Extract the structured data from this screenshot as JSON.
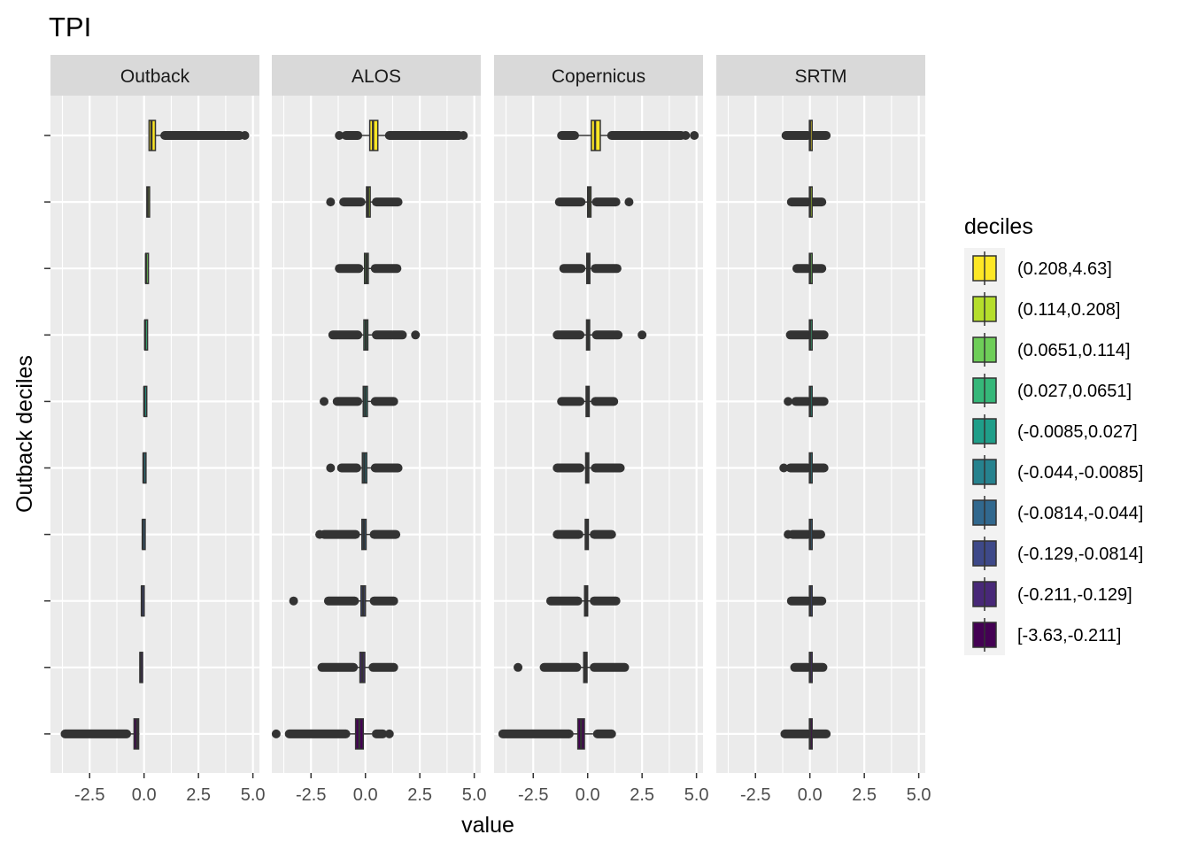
{
  "chart_data": {
    "type": "boxplot",
    "title": "TPI",
    "xlabel": "value",
    "ylabel": "Outback deciles",
    "xlim": [
      -4.3,
      5.3
    ],
    "x_ticks": [
      -2.5,
      0.0,
      2.5,
      5.0
    ],
    "x_tick_labels": [
      "-2.5",
      "0.0",
      "2.5",
      "5.0"
    ],
    "orientation": "horizontal",
    "grid": true,
    "legend_title": "deciles",
    "legend_position": "right",
    "colors": {
      "panel_bg": "#ebebeb",
      "grid": "#ffffff",
      "strip_bg": "#d9d9d9",
      "outlier": "#333333",
      "box_line": "#333333"
    },
    "deciles": [
      {
        "label": "(0.208,4.63]",
        "color": "#fde725"
      },
      {
        "label": "(0.114,0.208]",
        "color": "#b5de2b"
      },
      {
        "label": "(0.0651,0.114]",
        "color": "#6ece58"
      },
      {
        "label": "(0.027,0.0651]",
        "color": "#35b779"
      },
      {
        "label": "(-0.0085,0.027]",
        "color": "#1f9e89"
      },
      {
        "label": "(-0.044,-0.0085]",
        "color": "#26828e"
      },
      {
        "label": "(-0.0814,-0.044]",
        "color": "#31688e"
      },
      {
        "label": "(-0.129,-0.0814]",
        "color": "#3e4989"
      },
      {
        "label": "(-0.211,-0.129]",
        "color": "#482878"
      },
      {
        "label": "[-3.63,-0.211]",
        "color": "#440154"
      }
    ],
    "panels": [
      {
        "name": "Outback",
        "boxes": [
          {
            "q1": 0.23,
            "median": 0.34,
            "q3": 0.52,
            "wlo": 0.208,
            "whi": 0.95,
            "outliers": [
              [
                0.95,
                4.4
              ],
              [
                4.63,
                4.63
              ]
            ]
          },
          {
            "q1": 0.13,
            "median": 0.16,
            "q3": 0.19,
            "wlo": 0.114,
            "whi": 0.208,
            "outliers": []
          },
          {
            "q1": 0.077,
            "median": 0.088,
            "q3": 0.1,
            "wlo": 0.065,
            "whi": 0.114,
            "outliers": []
          },
          {
            "q1": 0.036,
            "median": 0.045,
            "q3": 0.055,
            "wlo": 0.027,
            "whi": 0.065,
            "outliers": []
          },
          {
            "q1": 0.0,
            "median": 0.009,
            "q3": 0.018,
            "wlo": -0.0085,
            "whi": 0.027,
            "outliers": []
          },
          {
            "q1": -0.035,
            "median": -0.026,
            "q3": -0.017,
            "wlo": -0.044,
            "whi": -0.0085,
            "outliers": []
          },
          {
            "q1": -0.072,
            "median": -0.062,
            "q3": -0.053,
            "wlo": -0.081,
            "whi": -0.044,
            "outliers": []
          },
          {
            "q1": -0.117,
            "median": -0.104,
            "q3": -0.092,
            "wlo": -0.129,
            "whi": -0.081,
            "outliers": []
          },
          {
            "q1": -0.19,
            "median": -0.168,
            "q3": -0.148,
            "wlo": -0.211,
            "whi": -0.129,
            "outliers": []
          },
          {
            "q1": -0.46,
            "median": -0.33,
            "q3": -0.25,
            "wlo": -0.8,
            "whi": -0.211,
            "outliers": [
              [
                -3.63,
                -0.8
              ]
            ]
          }
        ]
      },
      {
        "name": "ALOS",
        "boxes": [
          {
            "q1": 0.2,
            "median": 0.35,
            "q3": 0.57,
            "wlo": -0.35,
            "whi": 1.1,
            "outliers": [
              [
                -0.9,
                -0.35
              ],
              [
                -1.2,
                -1.2
              ],
              [
                1.1,
                4.3
              ],
              [
                4.5,
                4.5
              ]
            ]
          },
          {
            "q1": 0.05,
            "median": 0.12,
            "q3": 0.22,
            "wlo": -0.2,
            "whi": 0.5,
            "outliers": [
              [
                -1.0,
                -0.2
              ],
              [
                -1.6,
                -1.6
              ],
              [
                0.5,
                1.5
              ]
            ]
          },
          {
            "q1": -0.04,
            "median": 0.05,
            "q3": 0.13,
            "wlo": -0.3,
            "whi": 0.45,
            "outliers": [
              [
                -1.2,
                -0.3
              ],
              [
                0.45,
                1.45
              ]
            ]
          },
          {
            "q1": -0.07,
            "median": 0.02,
            "q3": 0.11,
            "wlo": -0.35,
            "whi": 0.5,
            "outliers": [
              [
                -1.5,
                -0.35
              ],
              [
                0.5,
                1.7
              ],
              [
                2.3,
                2.3
              ]
            ]
          },
          {
            "q1": -0.1,
            "median": -0.01,
            "q3": 0.09,
            "wlo": -0.35,
            "whi": 0.45,
            "outliers": [
              [
                -1.3,
                -0.35
              ],
              [
                -1.9,
                -1.9
              ],
              [
                0.45,
                1.3
              ]
            ]
          },
          {
            "q1": -0.14,
            "median": -0.05,
            "q3": 0.06,
            "wlo": -0.4,
            "whi": 0.45,
            "outliers": [
              [
                -1.1,
                -0.4
              ],
              [
                -1.6,
                -1.6
              ],
              [
                0.45,
                1.5
              ]
            ]
          },
          {
            "q1": -0.16,
            "median": -0.07,
            "q3": 0.03,
            "wlo": -0.45,
            "whi": 0.4,
            "outliers": [
              [
                -1.9,
                -0.45
              ],
              [
                -2.1,
                -2.1
              ],
              [
                0.4,
                1.4
              ]
            ]
          },
          {
            "q1": -0.2,
            "median": -0.1,
            "q3": 0.0,
            "wlo": -0.5,
            "whi": 0.4,
            "outliers": [
              [
                -1.7,
                -0.5
              ],
              [
                -3.3,
                -3.3
              ],
              [
                0.4,
                1.3
              ]
            ]
          },
          {
            "q1": -0.25,
            "median": -0.14,
            "q3": -0.03,
            "wlo": -0.55,
            "whi": 0.35,
            "outliers": [
              [
                -2.0,
                -0.55
              ],
              [
                0.35,
                1.3
              ]
            ]
          },
          {
            "q1": -0.45,
            "median": -0.28,
            "q3": -0.1,
            "wlo": -0.9,
            "whi": 0.3,
            "outliers": [
              [
                -3.5,
                -0.9
              ],
              [
                -4.1,
                -4.1
              ],
              [
                0.5,
                0.8
              ],
              [
                1.1,
                1.1
              ]
            ]
          }
        ]
      },
      {
        "name": "Copernicus",
        "boxes": [
          {
            "q1": 0.17,
            "median": 0.34,
            "q3": 0.58,
            "wlo": -0.6,
            "whi": 1.1,
            "outliers": [
              [
                -1.2,
                -0.6
              ],
              [
                1.1,
                4.3
              ],
              [
                4.5,
                4.5
              ],
              [
                4.9,
                4.9
              ]
            ]
          },
          {
            "q1": 0.0,
            "median": 0.07,
            "q3": 0.15,
            "wlo": -0.3,
            "whi": 0.4,
            "outliers": [
              [
                -1.3,
                -0.3
              ],
              [
                0.4,
                1.3
              ],
              [
                1.9,
                1.9
              ]
            ]
          },
          {
            "q1": -0.04,
            "median": 0.03,
            "q3": 0.1,
            "wlo": -0.3,
            "whi": 0.35,
            "outliers": [
              [
                -1.1,
                -0.3
              ],
              [
                0.35,
                1.35
              ]
            ]
          },
          {
            "q1": -0.05,
            "median": 0.02,
            "q3": 0.09,
            "wlo": -0.35,
            "whi": 0.4,
            "outliers": [
              [
                -1.4,
                -0.35
              ],
              [
                0.4,
                1.4
              ],
              [
                2.5,
                2.5
              ]
            ]
          },
          {
            "q1": -0.07,
            "median": 0.0,
            "q3": 0.07,
            "wlo": -0.35,
            "whi": 0.35,
            "outliers": [
              [
                -1.2,
                -0.35
              ],
              [
                0.35,
                1.2
              ]
            ]
          },
          {
            "q1": -0.09,
            "median": -0.02,
            "q3": 0.05,
            "wlo": -0.35,
            "whi": 0.35,
            "outliers": [
              [
                -1.4,
                -0.35
              ],
              [
                0.35,
                1.5
              ]
            ]
          },
          {
            "q1": -0.11,
            "median": -0.04,
            "q3": 0.03,
            "wlo": -0.4,
            "whi": 0.3,
            "outliers": [
              [
                -1.4,
                -0.4
              ],
              [
                0.3,
                1.1
              ]
            ]
          },
          {
            "q1": -0.14,
            "median": -0.07,
            "q3": 0.0,
            "wlo": -0.45,
            "whi": 0.3,
            "outliers": [
              [
                -1.7,
                -0.45
              ],
              [
                0.3,
                1.3
              ]
            ]
          },
          {
            "q1": -0.18,
            "median": -0.1,
            "q3": -0.03,
            "wlo": -0.5,
            "whi": 0.3,
            "outliers": [
              [
                -2.0,
                -0.5
              ],
              [
                -3.2,
                -3.2
              ],
              [
                0.3,
                1.7
              ]
            ]
          },
          {
            "q1": -0.45,
            "median": -0.3,
            "q3": -0.15,
            "wlo": -0.85,
            "whi": 0.25,
            "outliers": [
              [
                -3.9,
                -0.85
              ],
              [
                0.45,
                1.1
              ]
            ]
          }
        ]
      },
      {
        "name": "SRTM",
        "boxes": [
          {
            "q1": -0.02,
            "median": 0.0,
            "q3": 0.02,
            "wlo": -0.1,
            "whi": 0.1,
            "outliers": [
              [
                -1.1,
                -0.1
              ],
              [
                0.1,
                0.75
              ]
            ]
          },
          {
            "q1": -0.02,
            "median": 0.0,
            "q3": 0.02,
            "wlo": -0.1,
            "whi": 0.1,
            "outliers": [
              [
                -0.85,
                -0.1
              ],
              [
                0.1,
                0.55
              ]
            ]
          },
          {
            "q1": -0.02,
            "median": 0.0,
            "q3": 0.02,
            "wlo": -0.1,
            "whi": 0.1,
            "outliers": [
              [
                -0.6,
                -0.1
              ],
              [
                0.1,
                0.55
              ]
            ]
          },
          {
            "q1": -0.02,
            "median": 0.0,
            "q3": 0.02,
            "wlo": -0.1,
            "whi": 0.1,
            "outliers": [
              [
                -0.9,
                -0.1
              ],
              [
                0.1,
                0.65
              ]
            ]
          },
          {
            "q1": -0.02,
            "median": 0.0,
            "q3": 0.02,
            "wlo": -0.1,
            "whi": 0.1,
            "outliers": [
              [
                -0.65,
                -0.1
              ],
              [
                -1.0,
                -1.0
              ],
              [
                0.1,
                0.65
              ]
            ]
          },
          {
            "q1": -0.02,
            "median": 0.0,
            "q3": 0.02,
            "wlo": -0.1,
            "whi": 0.1,
            "outliers": [
              [
                -0.9,
                -0.1
              ],
              [
                -1.2,
                -1.2
              ],
              [
                0.1,
                0.65
              ]
            ]
          },
          {
            "q1": -0.02,
            "median": 0.0,
            "q3": 0.02,
            "wlo": -0.1,
            "whi": 0.1,
            "outliers": [
              [
                -0.8,
                -0.1
              ],
              [
                -1.0,
                -1.0
              ],
              [
                0.1,
                0.5
              ]
            ]
          },
          {
            "q1": -0.02,
            "median": 0.0,
            "q3": 0.02,
            "wlo": -0.1,
            "whi": 0.1,
            "outliers": [
              [
                -0.85,
                -0.1
              ],
              [
                0.1,
                0.55
              ]
            ]
          },
          {
            "q1": -0.02,
            "median": 0.0,
            "q3": 0.02,
            "wlo": -0.1,
            "whi": 0.1,
            "outliers": [
              [
                -0.7,
                -0.1
              ],
              [
                0.1,
                0.6
              ]
            ]
          },
          {
            "q1": -0.02,
            "median": 0.0,
            "q3": 0.02,
            "wlo": -0.1,
            "whi": 0.1,
            "outliers": [
              [
                -1.15,
                -0.1
              ],
              [
                0.1,
                0.75
              ]
            ]
          }
        ]
      }
    ]
  }
}
